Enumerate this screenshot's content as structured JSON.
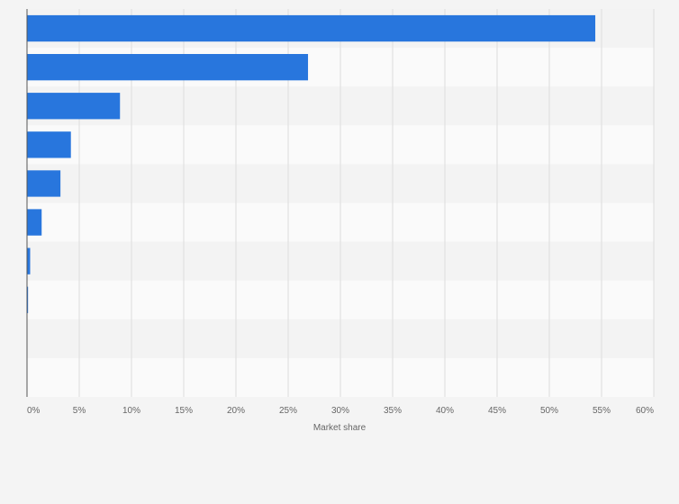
{
  "chart_data": {
    "type": "bar",
    "orientation": "horizontal",
    "categories": [
      "",
      "",
      "",
      "",
      "",
      "",
      "",
      "",
      "",
      ""
    ],
    "values": [
      54.4,
      26.9,
      8.9,
      4.2,
      3.2,
      1.4,
      0.3,
      0.1,
      0,
      0
    ],
    "xlabel": "Market share",
    "ylabel": "",
    "xlim": [
      0,
      60
    ],
    "xticks": [
      "0%",
      "5%",
      "10%",
      "15%",
      "20%",
      "25%",
      "30%",
      "35%",
      "40%",
      "45%",
      "50%",
      "55%",
      "60%"
    ],
    "grid": "vertical",
    "bar_color": "#2876dd"
  }
}
